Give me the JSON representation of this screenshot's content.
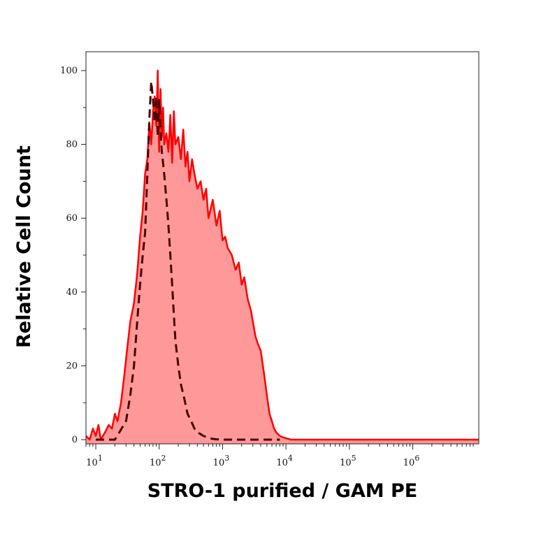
{
  "chart_data": {
    "type": "area",
    "title": "",
    "xlabel": "STRO-1 purified / GAM PE",
    "ylabel": "Relative Cell Count",
    "x_scale": "log",
    "xlim": [
      7,
      11000000
    ],
    "ylim": [
      0,
      100
    ],
    "grid": false,
    "x_ticks": [
      {
        "value": 10,
        "base": "10",
        "exp": "1"
      },
      {
        "value": 100,
        "base": "10",
        "exp": "2"
      },
      {
        "value": 1000,
        "base": "10",
        "exp": "3"
      },
      {
        "value": 10000,
        "base": "10",
        "exp": "4"
      },
      {
        "value": 100000,
        "base": "10",
        "exp": "5"
      },
      {
        "value": 1000000,
        "base": "10",
        "exp": "6"
      }
    ],
    "y_ticks": [
      0,
      20,
      40,
      60,
      80,
      100
    ],
    "series": [
      {
        "style": "filled area, solid red outline",
        "fill_color": "#ff9999",
        "line_color": "#ff0000",
        "x": [
          7,
          8,
          9,
          10,
          11,
          12,
          14,
          16,
          18,
          20,
          22,
          25,
          28,
          31,
          35,
          40,
          45,
          50,
          55,
          60,
          65,
          70,
          75,
          80,
          85,
          90,
          95,
          100,
          105,
          110,
          115,
          120,
          130,
          140,
          150,
          160,
          170,
          180,
          200,
          220,
          240,
          260,
          280,
          300,
          330,
          360,
          400,
          450,
          500,
          550,
          600,
          700,
          800,
          900,
          1000,
          1100,
          1200,
          1400,
          1600,
          1800,
          2000,
          2200,
          2500,
          2800,
          3000,
          3300,
          3600,
          4000,
          4500,
          5000,
          5500,
          6000,
          6500,
          7000,
          8000,
          9000,
          10000,
          11000,
          12000,
          14000,
          20000,
          50000,
          100000,
          1000000,
          11000000
        ],
        "y": [
          1,
          0,
          3,
          1,
          4,
          0,
          2,
          4,
          3,
          7,
          5,
          10,
          17,
          24,
          32,
          37,
          45,
          55,
          62,
          72,
          76,
          86,
          80,
          89,
          93,
          85,
          100,
          78,
          95,
          82,
          90,
          80,
          83,
          78,
          88,
          75,
          89,
          80,
          82,
          76,
          84,
          74,
          78,
          70,
          76,
          72,
          68,
          70,
          65,
          68,
          60,
          65,
          58,
          62,
          54,
          55,
          52,
          50,
          46,
          48,
          42,
          44,
          38,
          35,
          32,
          28,
          26,
          24,
          18,
          12,
          7,
          5,
          3,
          2,
          1,
          0.6,
          0.4,
          0.2,
          0,
          0,
          0,
          0,
          0,
          0,
          0
        ]
      },
      {
        "style": "dashed dark line (control)",
        "line_color": "#4a0000",
        "x": [
          10,
          20,
          30,
          35,
          40,
          45,
          50,
          55,
          60,
          65,
          70,
          75,
          80,
          85,
          90,
          95,
          100,
          105,
          110,
          115,
          120,
          130,
          140,
          150,
          160,
          170,
          180,
          200,
          220,
          250,
          280,
          320,
          360,
          400,
          450,
          500,
          600,
          700,
          800,
          1000,
          1200,
          2000,
          5000,
          8000
        ],
        "y": [
          0,
          0,
          5,
          12,
          20,
          32,
          42,
          50,
          56,
          72,
          87,
          97,
          92,
          86,
          93,
          82,
          92,
          84,
          78,
          75,
          72,
          65,
          58,
          50,
          42,
          34,
          27,
          20,
          15,
          11,
          7,
          5,
          3,
          2,
          1.5,
          1,
          0.5,
          0.2,
          0.1,
          0,
          0,
          0,
          0,
          0
        ]
      }
    ]
  }
}
